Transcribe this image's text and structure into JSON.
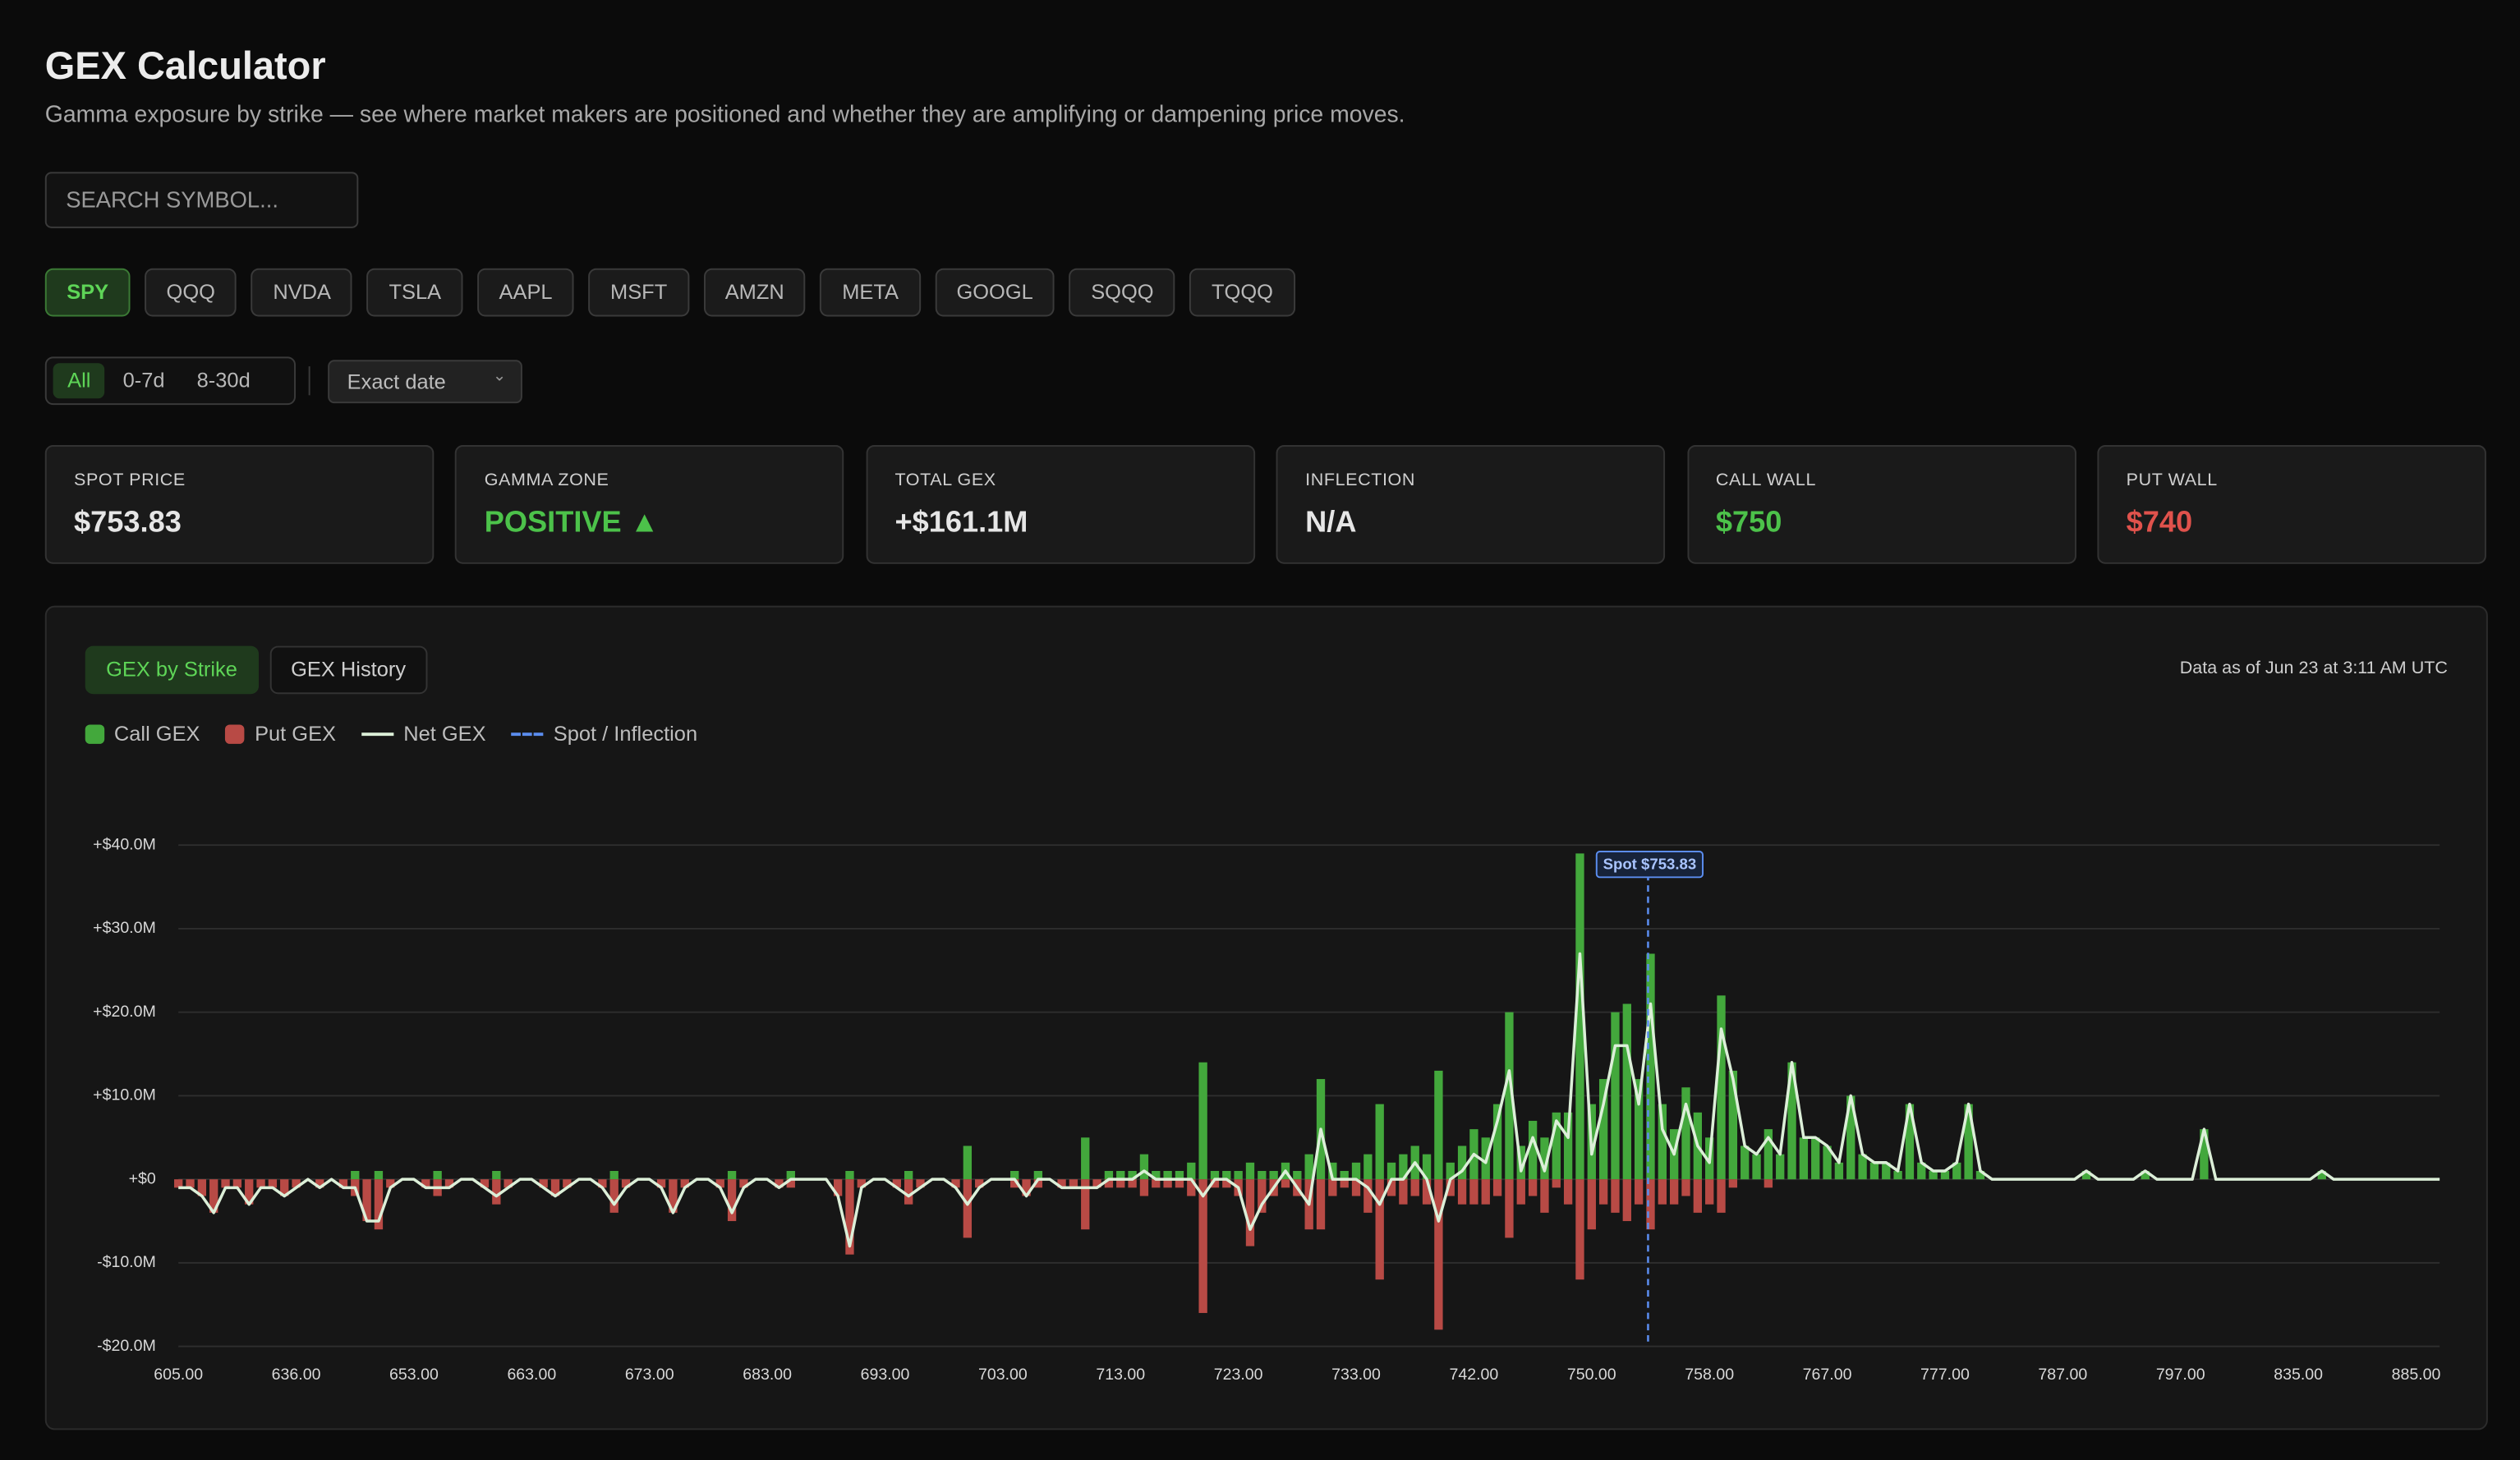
{
  "header": {
    "title": "GEX Calculator",
    "subtitle": "Gamma exposure by strike — see where market makers are positioned and whether they are amplifying or dampening price moves."
  },
  "search": {
    "placeholder": "SEARCH SYMBOL..."
  },
  "tickers": [
    "SPY",
    "QQQ",
    "NVDA",
    "TSLA",
    "AAPL",
    "MSFT",
    "AMZN",
    "META",
    "GOOGL",
    "SQQQ",
    "TQQQ"
  ],
  "expiry_filters": [
    "All",
    "0-7d",
    "8-30d"
  ],
  "date_select": "Exact date",
  "stats": [
    {
      "label": "SPOT PRICE",
      "value": "$753.83",
      "color": "#e6e6e6"
    },
    {
      "label": "GAMMA ZONE",
      "value": "POSITIVE ▲",
      "color": "#4cc24a"
    },
    {
      "label": "TOTAL GEX",
      "value": "+$161.1M",
      "color": "#e6e6e6"
    },
    {
      "label": "INFLECTION",
      "value": "N/A",
      "color": "#e6e6e6"
    },
    {
      "label": "CALL WALL",
      "value": "$750",
      "color": "#4cc24a"
    },
    {
      "label": "PUT WALL",
      "value": "$740",
      "color": "#e0524c"
    }
  ],
  "tabs": [
    "GEX by Strike",
    "GEX History"
  ],
  "data_as_of": "Data as of Jun 23 at 3:11 AM UTC",
  "chart_data": {
    "type": "bar",
    "categories": [
      "605.00",
      null,
      null,
      null,
      null,
      null,
      null,
      null,
      null,
      null,
      "636.00",
      null,
      null,
      null,
      null,
      null,
      null,
      null,
      null,
      null,
      "653.00",
      null,
      null,
      null,
      null,
      null,
      null,
      null,
      null,
      null,
      "663.00",
      null,
      null,
      null,
      null,
      null,
      null,
      null,
      null,
      null,
      "673.00",
      null,
      null,
      null,
      null,
      null,
      null,
      null,
      null,
      null,
      "683.00",
      null,
      null,
      null,
      null,
      null,
      null,
      null,
      null,
      null,
      "693.00",
      null,
      null,
      null,
      null,
      null,
      null,
      null,
      null,
      null,
      "703.00",
      null,
      null,
      null,
      null,
      null,
      null,
      null,
      null,
      null,
      "713.00",
      null,
      null,
      null,
      null,
      null,
      null,
      null,
      null,
      null,
      "723.00",
      null,
      null,
      null,
      null,
      null,
      null,
      null,
      null,
      null,
      "733.00",
      null,
      null,
      null,
      null,
      null,
      null,
      null,
      null,
      null,
      "742.00",
      null,
      null,
      null,
      null,
      null,
      null,
      null,
      null,
      null,
      "750.00",
      null,
      null,
      null,
      null,
      null,
      null,
      null,
      null,
      null,
      "758.00",
      null,
      null,
      null,
      null,
      null,
      null,
      null,
      null,
      null,
      "767.00",
      null,
      null,
      null,
      null,
      null,
      null,
      null,
      null,
      null,
      "777.00",
      null,
      null,
      null,
      null,
      null,
      null,
      null,
      null,
      null,
      "787.00",
      null,
      null,
      null,
      null,
      null,
      null,
      null,
      null,
      null,
      "797.00",
      null,
      null,
      null,
      null,
      null,
      null,
      null,
      null,
      null,
      "835.00",
      null,
      null,
      null,
      null,
      null,
      null,
      null,
      null,
      null,
      "885.00",
      null,
      null
    ],
    "series": [
      {
        "name": "Call GEX",
        "color": "#43a83c",
        "values": [
          0,
          0,
          0,
          0,
          0,
          0,
          0,
          0,
          0,
          0,
          0,
          0,
          0,
          0,
          0,
          1,
          0,
          1,
          0,
          0,
          0,
          0,
          1,
          0,
          0,
          0,
          0,
          1,
          0,
          0,
          0,
          0,
          0,
          0,
          0,
          0,
          0,
          1,
          0,
          0,
          0,
          0,
          0,
          0,
          0,
          0,
          0,
          1,
          0,
          0,
          0,
          0,
          1,
          0,
          0,
          0,
          0,
          1,
          0,
          0,
          0,
          0,
          1,
          0,
          0,
          0,
          0,
          4,
          0,
          0,
          0,
          1,
          0,
          1,
          0,
          0,
          0,
          5,
          0,
          1,
          1,
          1,
          3,
          1,
          1,
          1,
          2,
          14,
          1,
          1,
          1,
          2,
          1,
          1,
          2,
          1,
          3,
          12,
          2,
          1,
          2,
          3,
          9,
          2,
          3,
          4,
          3,
          13,
          2,
          4,
          6,
          5,
          9,
          20,
          4,
          7,
          5,
          8,
          8,
          39,
          9,
          12,
          20,
          21,
          12,
          27,
          9,
          6,
          11,
          8,
          5,
          22,
          13,
          4,
          3,
          6,
          3,
          14,
          5,
          5,
          4,
          2,
          10,
          3,
          2,
          2,
          1,
          9,
          2,
          1,
          1,
          2,
          9,
          1,
          0,
          0,
          0,
          0,
          0,
          0,
          0,
          0,
          1,
          0,
          0,
          0,
          0,
          1,
          0,
          0,
          0,
          0,
          6,
          0,
          0,
          0,
          0,
          0,
          0,
          0,
          0,
          0,
          1,
          0,
          0,
          0,
          0,
          0,
          0,
          0,
          0,
          0,
          0
        ]
      },
      {
        "name": "Put GEX",
        "color": "#b84a45",
        "values": [
          -1,
          -1,
          -2,
          -4,
          -1,
          -1,
          -3,
          -1,
          -1,
          -2,
          -1,
          0,
          -1,
          0,
          -1,
          -2,
          -5,
          -6,
          -1,
          0,
          0,
          -1,
          -2,
          -1,
          0,
          0,
          -1,
          -3,
          -1,
          0,
          0,
          -1,
          -2,
          -1,
          0,
          0,
          -1,
          -4,
          -1,
          0,
          0,
          -1,
          -4,
          -1,
          0,
          0,
          -1,
          -5,
          -1,
          0,
          0,
          -1,
          -1,
          0,
          0,
          0,
          -2,
          -9,
          -1,
          0,
          0,
          -1,
          -3,
          -1,
          0,
          0,
          -1,
          -7,
          -1,
          0,
          0,
          -1,
          -2,
          -1,
          0,
          -1,
          -1,
          -6,
          -1,
          -1,
          -1,
          -1,
          -2,
          -1,
          -1,
          -1,
          -2,
          -16,
          -1,
          -1,
          -2,
          -8,
          -4,
          -2,
          -1,
          -2,
          -6,
          -6,
          -2,
          -1,
          -2,
          -4,
          -12,
          -2,
          -3,
          -2,
          -3,
          -18,
          -2,
          -3,
          -3,
          -3,
          -2,
          -7,
          -3,
          -2,
          -4,
          -1,
          -3,
          -12,
          -6,
          -3,
          -4,
          -5,
          -3,
          -6,
          -3,
          -3,
          -2,
          -4,
          -3,
          -4,
          -1,
          0,
          0,
          -1,
          0,
          0,
          0,
          0,
          0,
          0,
          0,
          0,
          0,
          0,
          0,
          0,
          0,
          0,
          0,
          0,
          0,
          0,
          0,
          0,
          0,
          0,
          0,
          0,
          0,
          0,
          0,
          0,
          0,
          0,
          0,
          0,
          0,
          0,
          0,
          0,
          0,
          0,
          0,
          0,
          0,
          0,
          0,
          0,
          0,
          0,
          0,
          0,
          0,
          0,
          0,
          0,
          0,
          0,
          0,
          0,
          0
        ]
      },
      {
        "name": "Net GEX",
        "color": "#dcefd8",
        "type": "line",
        "values": [
          -1,
          -1,
          -2,
          -4,
          -1,
          -1,
          -3,
          -1,
          -1,
          -2,
          -1,
          0,
          -1,
          0,
          -1,
          -1,
          -5,
          -5,
          -1,
          0,
          0,
          -1,
          -1,
          -1,
          0,
          0,
          -1,
          -2,
          -1,
          0,
          0,
          -1,
          -2,
          -1,
          0,
          0,
          -1,
          -3,
          -1,
          0,
          0,
          -1,
          -4,
          -1,
          0,
          0,
          -1,
          -4,
          -1,
          0,
          0,
          -1,
          0,
          0,
          0,
          0,
          -2,
          -8,
          -1,
          0,
          0,
          -1,
          -2,
          -1,
          0,
          0,
          -1,
          -3,
          -1,
          0,
          0,
          0,
          -2,
          0,
          0,
          -1,
          -1,
          -1,
          -1,
          0,
          0,
          0,
          1,
          0,
          0,
          0,
          0,
          -2,
          0,
          0,
          -1,
          -6,
          -3,
          -1,
          1,
          -1,
          -3,
          6,
          0,
          0,
          0,
          -1,
          -3,
          0,
          0,
          2,
          0,
          -5,
          0,
          1,
          3,
          2,
          7,
          13,
          1,
          5,
          1,
          7,
          5,
          27,
          3,
          9,
          16,
          16,
          9,
          21,
          6,
          3,
          9,
          4,
          2,
          18,
          12,
          4,
          3,
          5,
          3,
          14,
          5,
          5,
          4,
          2,
          10,
          3,
          2,
          2,
          1,
          9,
          2,
          1,
          1,
          2,
          9,
          1,
          0,
          0,
          0,
          0,
          0,
          0,
          0,
          0,
          1,
          0,
          0,
          0,
          0,
          1,
          0,
          0,
          0,
          0,
          6,
          0,
          0,
          0,
          0,
          0,
          0,
          0,
          0,
          0,
          1,
          0,
          0,
          0,
          0,
          0,
          0,
          0,
          0,
          0,
          0
        ]
      }
    ],
    "spot": 753.83,
    "spot_label": "Spot $753.83",
    "spot_legend": "Spot / Inflection",
    "spot_color": "#5b8def",
    "ylim": [
      -20,
      40
    ],
    "yticks": [
      {
        "value": 40,
        "label": "+$40.0M"
      },
      {
        "value": 30,
        "label": "+$30.0M"
      },
      {
        "value": 20,
        "label": "+$20.0M"
      },
      {
        "value": 10,
        "label": "+$10.0M"
      },
      {
        "value": 0,
        "label": "+$0"
      },
      {
        "value": -10,
        "label": "-$10.0M"
      },
      {
        "value": -20,
        "label": "-$20.0M"
      }
    ],
    "grid": true
  }
}
